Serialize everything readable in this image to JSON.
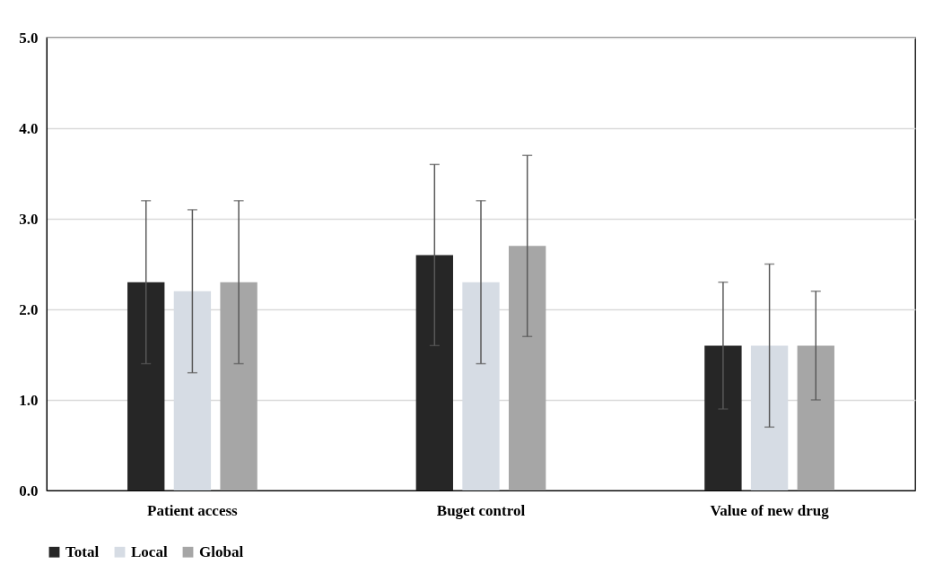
{
  "chart_data": {
    "type": "bar",
    "categories": [
      "Patient access",
      "Buget control",
      "Value of new drug"
    ],
    "series": [
      {
        "name": "Total",
        "color": "#262626",
        "values": [
          2.3,
          2.6,
          1.6
        ],
        "errors": [
          [
            1.4,
            3.2
          ],
          [
            1.6,
            3.6
          ],
          [
            0.9,
            2.3
          ]
        ]
      },
      {
        "name": "Local",
        "color": "#d6dce4",
        "values": [
          2.2,
          2.3,
          1.6
        ],
        "errors": [
          [
            1.3,
            3.1
          ],
          [
            1.4,
            3.2
          ],
          [
            0.7,
            2.5
          ]
        ]
      },
      {
        "name": "Global",
        "color": "#a6a6a6",
        "values": [
          2.3,
          2.7,
          1.6
        ],
        "errors": [
          [
            1.4,
            3.2
          ],
          [
            1.7,
            3.7
          ],
          [
            1.0,
            2.2
          ]
        ]
      }
    ],
    "ylim": [
      0,
      5
    ],
    "yticks": [
      {
        "value": 0,
        "label": "0.0"
      },
      {
        "value": 1,
        "label": "1.0"
      },
      {
        "value": 2,
        "label": "2.0"
      },
      {
        "value": 3,
        "label": "3.0"
      },
      {
        "value": 4,
        "label": "4.0"
      },
      {
        "value": 5,
        "label": "5.0"
      }
    ],
    "grid": "y",
    "legend": "bottom"
  }
}
